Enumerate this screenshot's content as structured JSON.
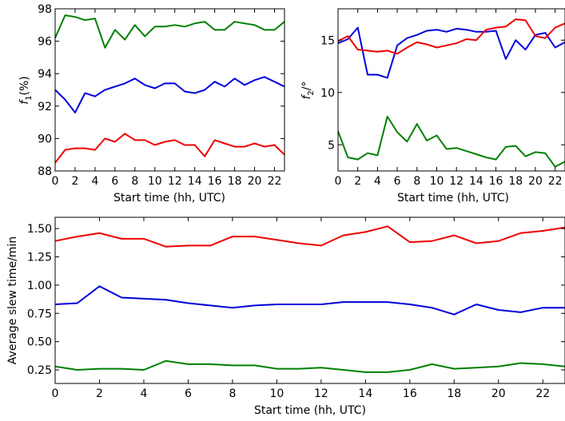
{
  "chart_data": [
    {
      "type": "line",
      "xlabel": "Start time (hh, UTC)",
      "ylabel": "f1 (%)",
      "ylabel_main": "f",
      "ylabel_sub": "1",
      "ylabel_tail": "(%)",
      "xlim": [
        0,
        23
      ],
      "ylim": [
        88,
        98
      ],
      "xticks": [
        0,
        2,
        4,
        6,
        8,
        10,
        12,
        14,
        16,
        18,
        20,
        22
      ],
      "yticks": [
        88,
        90,
        92,
        94,
        96,
        98
      ],
      "x": [
        0,
        1,
        2,
        3,
        4,
        5,
        6,
        7,
        8,
        9,
        10,
        11,
        12,
        13,
        14,
        15,
        16,
        17,
        18,
        19,
        20,
        21,
        22,
        23
      ],
      "grid": false,
      "series": [
        {
          "color": "#008000",
          "values": [
            96.2,
            97.6,
            97.5,
            97.3,
            97.4,
            95.6,
            96.7,
            96.1,
            97.0,
            96.3,
            96.9,
            96.9,
            97.0,
            96.9,
            97.1,
            97.2,
            96.7,
            96.7,
            97.2,
            97.1,
            97.0,
            96.7,
            96.7,
            97.2
          ]
        },
        {
          "color": "#0000dd",
          "values": [
            93.0,
            92.4,
            91.6,
            92.8,
            92.6,
            93.0,
            93.2,
            93.4,
            93.7,
            93.3,
            93.1,
            93.4,
            93.4,
            92.9,
            92.8,
            93.0,
            93.5,
            93.2,
            93.7,
            93.3,
            93.6,
            93.8,
            93.5,
            93.2
          ]
        },
        {
          "color": "#ee0000",
          "values": [
            88.5,
            89.3,
            89.4,
            89.4,
            89.3,
            90.0,
            89.8,
            90.3,
            89.9,
            89.9,
            89.6,
            89.8,
            89.9,
            89.6,
            89.6,
            88.9,
            89.9,
            89.7,
            89.5,
            89.5,
            89.7,
            89.5,
            89.6,
            89.0
          ]
        }
      ]
    },
    {
      "type": "line",
      "xlabel": "Start time (hh, UTC)",
      "ylabel": "f2/°",
      "ylabel_main": "f",
      "ylabel_sub": "2",
      "ylabel_tail": "/°",
      "xlim": [
        0,
        23
      ],
      "ylim": [
        2.5,
        18
      ],
      "xticks": [
        0,
        2,
        4,
        6,
        8,
        10,
        12,
        14,
        16,
        18,
        20,
        22
      ],
      "yticks": [
        5,
        10,
        15
      ],
      "x": [
        0,
        1,
        2,
        3,
        4,
        5,
        6,
        7,
        8,
        9,
        10,
        11,
        12,
        13,
        14,
        15,
        16,
        17,
        18,
        19,
        20,
        21,
        22,
        23
      ],
      "grid": false,
      "series": [
        {
          "color": "#0000dd",
          "values": [
            14.7,
            15.1,
            16.2,
            11.7,
            11.7,
            11.4,
            14.5,
            15.2,
            15.5,
            15.9,
            16.0,
            15.8,
            16.1,
            16.0,
            15.8,
            15.8,
            15.9,
            13.2,
            15.0,
            14.1,
            15.5,
            15.7,
            14.3,
            14.8
          ]
        },
        {
          "color": "#ee0000",
          "values": [
            14.9,
            15.4,
            14.1,
            14.0,
            13.9,
            14.0,
            13.7,
            14.3,
            14.8,
            14.6,
            14.3,
            14.5,
            14.7,
            15.1,
            15.0,
            16.0,
            16.2,
            16.3,
            17.0,
            16.9,
            15.4,
            15.2,
            16.2,
            16.6
          ]
        },
        {
          "color": "#008000",
          "values": [
            6.3,
            3.8,
            3.6,
            4.2,
            4.0,
            7.7,
            6.2,
            5.3,
            7.0,
            5.4,
            5.9,
            4.6,
            4.7,
            4.4,
            4.1,
            3.8,
            3.6,
            4.8,
            4.9,
            3.9,
            4.3,
            4.2,
            2.9,
            3.4
          ]
        }
      ]
    },
    {
      "type": "line",
      "xlabel": "Start time (hh, UTC)",
      "ylabel": "Average slew time/min",
      "xlim": [
        0,
        23
      ],
      "ylim": [
        0.13,
        1.6
      ],
      "xticks": [
        0,
        2,
        4,
        6,
        8,
        10,
        12,
        14,
        16,
        18,
        20,
        22
      ],
      "yticks": [
        0.25,
        0.5,
        0.75,
        1.0,
        1.25,
        1.5
      ],
      "ytick_labels": [
        "0.25",
        "0.50",
        "0.75",
        "1.00",
        "1.25",
        "1.50"
      ],
      "x": [
        0,
        1,
        2,
        3,
        4,
        5,
        6,
        7,
        8,
        9,
        10,
        11,
        12,
        13,
        14,
        15,
        16,
        17,
        18,
        19,
        20,
        21,
        22,
        23
      ],
      "grid": false,
      "series": [
        {
          "color": "#ee0000",
          "values": [
            1.39,
            1.43,
            1.46,
            1.41,
            1.41,
            1.34,
            1.35,
            1.35,
            1.43,
            1.43,
            1.4,
            1.37,
            1.35,
            1.44,
            1.47,
            1.52,
            1.38,
            1.39,
            1.44,
            1.37,
            1.39,
            1.46,
            1.48,
            1.51
          ]
        },
        {
          "color": "#0000dd",
          "values": [
            0.83,
            0.84,
            0.99,
            0.89,
            0.88,
            0.87,
            0.84,
            0.82,
            0.8,
            0.82,
            0.83,
            0.83,
            0.83,
            0.85,
            0.85,
            0.85,
            0.83,
            0.8,
            0.74,
            0.83,
            0.78,
            0.76,
            0.8,
            0.8
          ]
        },
        {
          "color": "#008000",
          "values": [
            0.28,
            0.25,
            0.26,
            0.26,
            0.25,
            0.33,
            0.3,
            0.3,
            0.29,
            0.29,
            0.26,
            0.26,
            0.27,
            0.25,
            0.23,
            0.23,
            0.25,
            0.3,
            0.26,
            0.27,
            0.28,
            0.31,
            0.3,
            0.28
          ]
        }
      ]
    }
  ]
}
